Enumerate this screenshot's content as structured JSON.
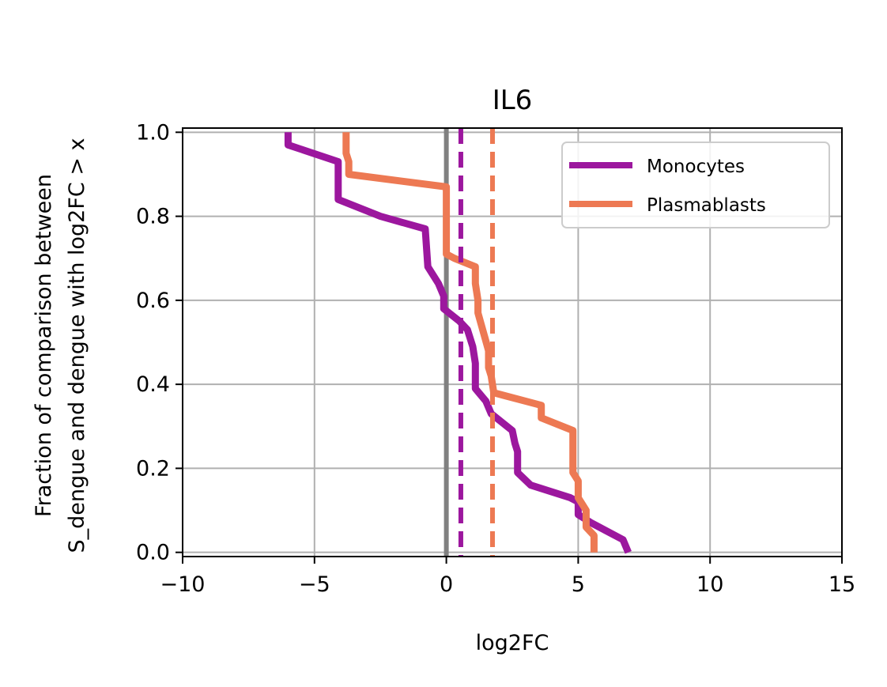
{
  "chart_data": {
    "type": "line",
    "title": "IL6",
    "xlabel": "log2FC",
    "ylabel_lines": [
      "Fraction of comparison between",
      "S_dengue and dengue with log2FC > x"
    ],
    "xlim": [
      -10,
      15
    ],
    "ylim": [
      -0.01,
      1.01
    ],
    "xticks": [
      -10,
      -5,
      0,
      5,
      10,
      15
    ],
    "xtick_labels": [
      "−10",
      "−5",
      "0",
      "5",
      "10",
      "15"
    ],
    "yticks": [
      0.0,
      0.2,
      0.4,
      0.6,
      0.8,
      1.0
    ],
    "ytick_labels": [
      "0.0",
      "0.2",
      "0.4",
      "0.6",
      "0.8",
      "1.0"
    ],
    "grid": true,
    "legend_position": "top-right",
    "reference_line": {
      "x": 0,
      "color": "#808080"
    },
    "series": [
      {
        "name": "Monocytes",
        "color": "#9c179e",
        "median_x": 0.55,
        "points": [
          [
            -6.0,
            1.0
          ],
          [
            -6.0,
            0.97
          ],
          [
            -4.1,
            0.93
          ],
          [
            -4.1,
            0.84
          ],
          [
            -2.5,
            0.8
          ],
          [
            -0.8,
            0.77
          ],
          [
            -0.7,
            0.68
          ],
          [
            -0.5,
            0.66
          ],
          [
            -0.3,
            0.64
          ],
          [
            -0.1,
            0.61
          ],
          [
            -0.1,
            0.58
          ],
          [
            0.5,
            0.55
          ],
          [
            0.8,
            0.53
          ],
          [
            1.0,
            0.49
          ],
          [
            1.1,
            0.45
          ],
          [
            1.1,
            0.39
          ],
          [
            1.5,
            0.36
          ],
          [
            1.7,
            0.33
          ],
          [
            2.5,
            0.29
          ],
          [
            2.6,
            0.26
          ],
          [
            2.7,
            0.24
          ],
          [
            2.7,
            0.19
          ],
          [
            3.2,
            0.16
          ],
          [
            4.7,
            0.13
          ],
          [
            5.0,
            0.12
          ],
          [
            5.0,
            0.09
          ],
          [
            5.5,
            0.07
          ],
          [
            6.7,
            0.03
          ],
          [
            6.9,
            0.0
          ]
        ]
      },
      {
        "name": "Plasmablasts",
        "color": "#ed7953",
        "median_x": 1.75,
        "points": [
          [
            -3.8,
            1.0
          ],
          [
            -3.8,
            0.95
          ],
          [
            -3.7,
            0.93
          ],
          [
            -3.7,
            0.9
          ],
          [
            0.0,
            0.87
          ],
          [
            0.0,
            0.71
          ],
          [
            0.3,
            0.7
          ],
          [
            1.1,
            0.68
          ],
          [
            1.1,
            0.64
          ],
          [
            1.2,
            0.6
          ],
          [
            1.2,
            0.57
          ],
          [
            1.6,
            0.48
          ],
          [
            1.6,
            0.44
          ],
          [
            1.7,
            0.42
          ],
          [
            1.8,
            0.38
          ],
          [
            3.6,
            0.35
          ],
          [
            3.6,
            0.32
          ],
          [
            4.8,
            0.29
          ],
          [
            4.8,
            0.19
          ],
          [
            5.0,
            0.17
          ],
          [
            5.0,
            0.13
          ],
          [
            5.3,
            0.1
          ],
          [
            5.3,
            0.06
          ],
          [
            5.6,
            0.04
          ],
          [
            5.6,
            0.0
          ]
        ]
      }
    ]
  }
}
